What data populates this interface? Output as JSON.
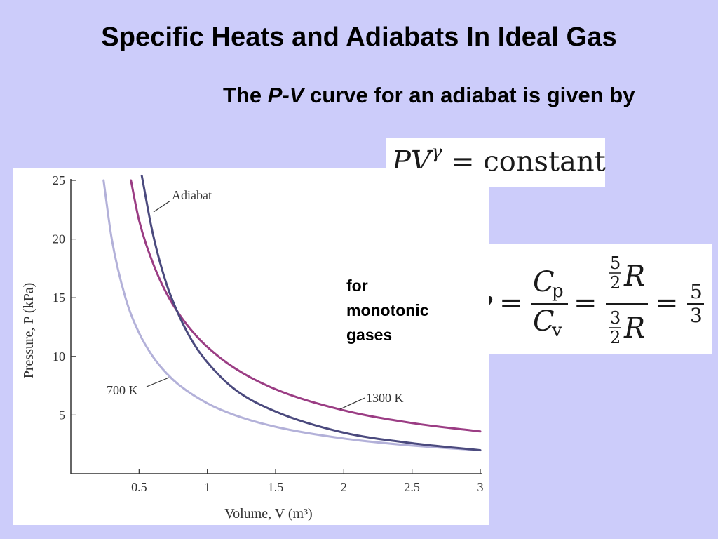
{
  "slide": {
    "title": "Specific Heats and Adiabats In Ideal Gas",
    "subtitle_prefix": "The ",
    "subtitle_var": "P-V",
    "subtitle_suffix": " curve for an adiabat is given by",
    "note_lines": [
      "for",
      "monotonic",
      "gases"
    ]
  },
  "equation1": {
    "lhs": "PV",
    "exponent": "γ",
    "equals": "=",
    "rhs": "constant"
  },
  "equation2": {
    "gamma": "γ",
    "equals": "=",
    "cp_num": "C",
    "cp_sub": "p",
    "cv_den": "C",
    "cv_sub": "v",
    "num_coef_num": "5",
    "num_coef_den": "2",
    "den_coef_num": "3",
    "den_coef_den": "2",
    "R": "R",
    "result_num": "5",
    "result_den": "3"
  },
  "chart_data": {
    "type": "line",
    "xlabel": "Volume, V (m³)",
    "ylabel": "Pressure, P (kPa)",
    "xlim": [
      0,
      3
    ],
    "ylim": [
      0,
      25
    ],
    "x_ticks": [
      0.5,
      1,
      1.5,
      2,
      2.5,
      3
    ],
    "x_tick_labels": [
      "0.5",
      "1",
      "1.5",
      "2",
      "2.5",
      "3"
    ],
    "y_ticks": [
      5,
      10,
      15,
      20,
      25
    ],
    "y_tick_labels": [
      "5",
      "10",
      "15",
      "20",
      "25"
    ],
    "grid": false,
    "series": [
      {
        "name": "700 K",
        "color": "#b3b1d9",
        "x": [
          0.24,
          0.3,
          0.4,
          0.5,
          0.6,
          0.7,
          0.8,
          1.0,
          1.2,
          1.5,
          2.0,
          2.5,
          3.0
        ],
        "y": [
          25.0,
          20.0,
          15.0,
          12.0,
          10.0,
          8.57,
          7.5,
          6.0,
          5.0,
          4.0,
          3.0,
          2.4,
          2.0
        ]
      },
      {
        "name": "1300 K",
        "color": "#9b3d84",
        "x": [
          0.44,
          0.5,
          0.6,
          0.7,
          0.8,
          0.9,
          1.0,
          1.2,
          1.5,
          2.0,
          2.5,
          3.0
        ],
        "y": [
          25.0,
          21.6,
          18.0,
          15.4,
          13.5,
          12.0,
          10.8,
          9.0,
          7.2,
          5.4,
          4.32,
          3.6
        ]
      },
      {
        "name": "Adiabat",
        "color": "#4b4a7e",
        "x": [
          0.52,
          0.6,
          0.7,
          0.8,
          0.9,
          1.0,
          1.2,
          1.5,
          2.0,
          2.5,
          3.0
        ],
        "y": [
          25.4,
          20.5,
          16.2,
          13.3,
          11.1,
          9.5,
          7.2,
          5.3,
          3.5,
          2.6,
          2.0
        ]
      }
    ],
    "annotations": [
      {
        "text": "Adiabat",
        "series": "Adiabat"
      },
      {
        "text": "700 K",
        "series": "700 K"
      },
      {
        "text": "1300 K",
        "series": "1300 K"
      }
    ]
  }
}
